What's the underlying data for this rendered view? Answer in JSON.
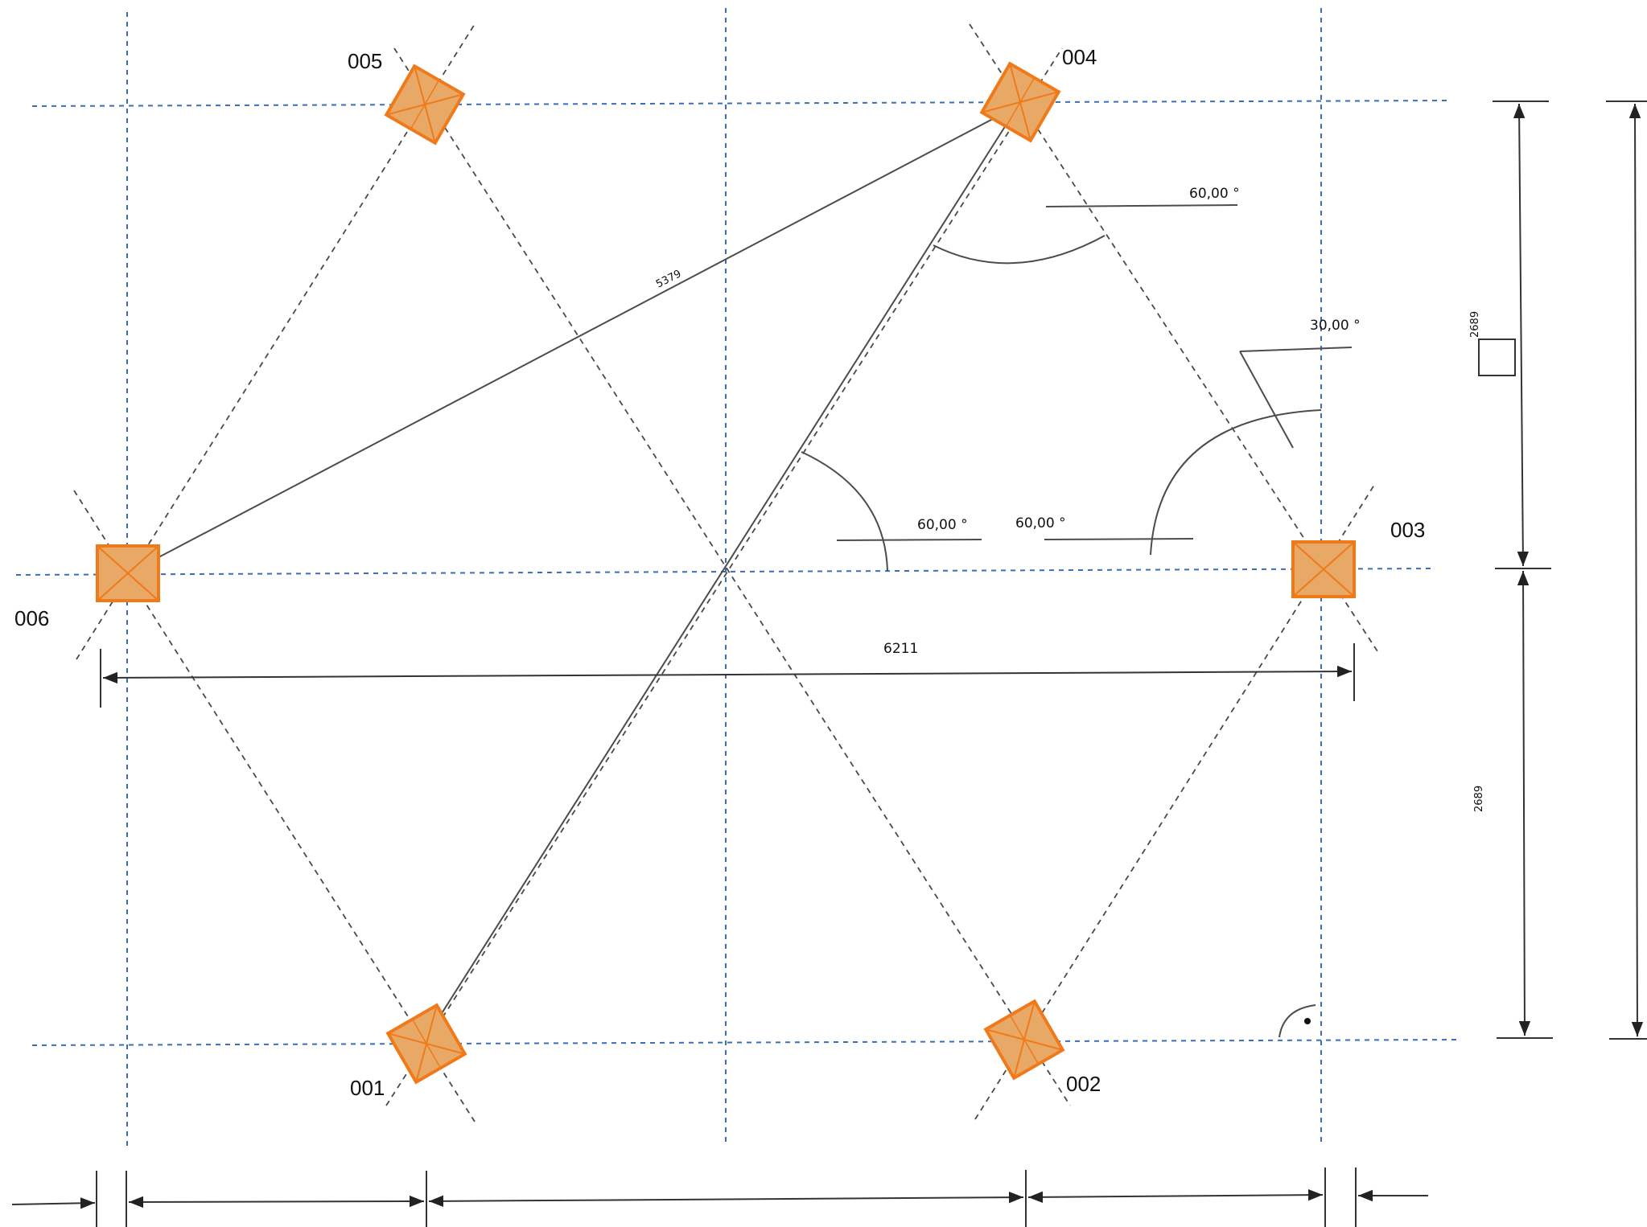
{
  "nodes": [
    {
      "id": "001",
      "label": "001"
    },
    {
      "id": "002",
      "label": "002"
    },
    {
      "id": "003",
      "label": "003"
    },
    {
      "id": "004",
      "label": "004"
    },
    {
      "id": "005",
      "label": "005"
    },
    {
      "id": "006",
      "label": "006"
    }
  ],
  "dimensions": {
    "diagonal": "5379",
    "horizontal": "6211",
    "vertical_upper": "2689",
    "vertical_lower": "2689"
  },
  "angles": {
    "top_right": "60,00 °",
    "right_upper": "30,00 °",
    "center_left": "60,00 °",
    "center_right": "60,00 °"
  },
  "colors": {
    "node_fill": "#e8a866",
    "node_stroke": "#f07a1a",
    "grid_line": "#3a6fb5"
  }
}
